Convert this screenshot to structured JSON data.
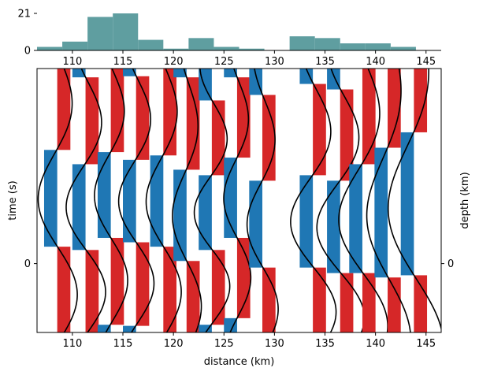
{
  "chart_data": [
    {
      "type": "bar",
      "panel": "histogram",
      "color": "#5f9ea0",
      "bin_edges": [
        106.5,
        109,
        111.5,
        114,
        116.5,
        119,
        121.5,
        124,
        126.5,
        129,
        131.5,
        134,
        136.5,
        139,
        141.5,
        144
      ],
      "values": [
        2,
        5,
        19,
        21,
        6,
        1,
        7,
        2,
        1,
        0,
        8,
        7,
        4,
        4,
        2
      ],
      "xlim": [
        106.5,
        146.5
      ],
      "ylim": [
        0,
        21
      ],
      "yticks": [
        0,
        21
      ],
      "xticks": [
        110,
        115,
        120,
        125,
        130,
        135,
        140,
        145
      ],
      "xtick_labels": [
        "110",
        "115",
        "120",
        "125",
        "130",
        "135",
        "140",
        "145"
      ],
      "ytick_labels": [
        "0",
        "21"
      ]
    },
    {
      "type": "wiggle",
      "panel": "main",
      "positive_color": "#d62728",
      "negative_color": "#1f77b4",
      "line_color": "#000000",
      "xlabel": "distance (km)",
      "ylabel": "time (s)",
      "ylabel_right": "depth (km)",
      "xlim": [
        106.5,
        146.5
      ],
      "ylim": [
        1.2,
        -3.4
      ],
      "yticks": [
        0
      ],
      "ytick_labels": [
        "0"
      ],
      "ytick_labels_right": [
        "0"
      ],
      "xticks": [
        110,
        115,
        120,
        125,
        130,
        135,
        140,
        145
      ],
      "xtick_labels": [
        "110",
        "115",
        "120",
        "125",
        "130",
        "135",
        "140",
        "145"
      ],
      "series": [
        {
          "x": 108.5,
          "amplitude": 1.9,
          "period": 3.4,
          "phase": 0.55
        },
        {
          "x": 111.3,
          "amplitude": 1.9,
          "period": 3.0,
          "phase": 0.5
        },
        {
          "x": 113.8,
          "amplitude": 1.6,
          "period": 3.0,
          "phase": 0.3
        },
        {
          "x": 116.3,
          "amplitude": 1.7,
          "period": 2.9,
          "phase": 0.35
        },
        {
          "x": 119.0,
          "amplitude": 1.7,
          "period": 3.2,
          "phase": 0.5
        },
        {
          "x": 121.3,
          "amplitude": 1.4,
          "period": 3.2,
          "phase": 0.75
        },
        {
          "x": 123.8,
          "amplitude": 1.7,
          "period": 2.6,
          "phase": 0.4
        },
        {
          "x": 126.3,
          "amplitude": 1.3,
          "period": 2.8,
          "phase": 0.25
        },
        {
          "x": 128.8,
          "amplitude": 1.5,
          "period": 3.0,
          "phase": 0.8
        },
        {
          "x": 133.8,
          "amplitude": 2.2,
          "period": 3.2,
          "phase": 0.85
        },
        {
          "x": 136.5,
          "amplitude": 2.3,
          "period": 3.2,
          "phase": 0.95
        },
        {
          "x": 138.7,
          "amplitude": 2.4,
          "period": 3.8,
          "phase": 1.1
        },
        {
          "x": 141.2,
          "amplitude": 2.2,
          "period": 4.5,
          "phase": 1.35
        },
        {
          "x": 143.8,
          "amplitude": 2.8,
          "period": 5.0,
          "phase": 1.45
        }
      ]
    }
  ]
}
